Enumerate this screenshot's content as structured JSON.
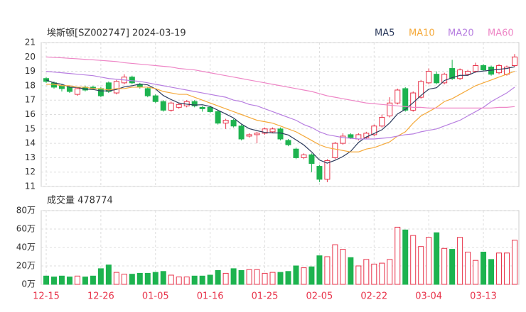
{
  "chart_data": {
    "type": "candlestick",
    "title": "埃斯顿[SZ002747] 2024-03-19",
    "categories": [
      "12-15",
      null,
      null,
      null,
      null,
      null,
      null,
      "12-26",
      null,
      null,
      null,
      null,
      null,
      null,
      "01-05",
      null,
      null,
      null,
      null,
      null,
      null,
      "01-16",
      null,
      null,
      null,
      null,
      null,
      null,
      "01-25",
      null,
      null,
      null,
      null,
      null,
      null,
      "02-05",
      null,
      null,
      null,
      null,
      null,
      null,
      "02-22",
      null,
      null,
      null,
      null,
      null,
      null,
      "03-04",
      null,
      null,
      null,
      null,
      null,
      null,
      "03-13",
      null,
      null,
      null,
      null
    ],
    "open": [
      18.5,
      18.2,
      18.0,
      17.9,
      17.4,
      17.9,
      17.9,
      17.8,
      18.2,
      17.5,
      18.2,
      18.6,
      18.1,
      17.8,
      17.3,
      16.9,
      16.3,
      16.5,
      16.6,
      16.9,
      16.5,
      16.5,
      16.2,
      15.4,
      15.6,
      15.2,
      14.5,
      14.6,
      14.7,
      14.8,
      15.0,
      14.2,
      13.6,
      13.0,
      13.2,
      12.4,
      11.5,
      13.0,
      14.0,
      14.6,
      14.3,
      14.4,
      14.6,
      15.2,
      15.9,
      16.8,
      17.8,
      16.3,
      17.2,
      18.2,
      18.8,
      18.2,
      19.2,
      18.5,
      18.8,
      19.0,
      19.4,
      19.3,
      18.9,
      18.8,
      19.4
    ],
    "high": [
      18.6,
      18.3,
      18.1,
      18.0,
      17.9,
      18.0,
      18.0,
      17.9,
      18.3,
      18.4,
      18.8,
      18.7,
      18.2,
      17.9,
      17.4,
      17.0,
      16.9,
      16.8,
      17.0,
      17.0,
      16.6,
      16.6,
      16.3,
      15.7,
      15.7,
      15.3,
      14.7,
      14.8,
      15.1,
      15.1,
      15.1,
      14.3,
      13.7,
      13.3,
      13.3,
      12.5,
      12.9,
      14.1,
      14.7,
      14.7,
      14.7,
      14.8,
      15.3,
      16.0,
      17.2,
      17.8,
      17.9,
      17.6,
      18.4,
      19.2,
      19.0,
      18.9,
      19.8,
      19.2,
      19.1,
      19.6,
      19.5,
      19.4,
      19.5,
      19.4,
      20.2
    ],
    "low": [
      18.2,
      17.8,
      17.6,
      17.5,
      17.3,
      17.6,
      17.7,
      17.2,
      17.5,
      17.4,
      18.1,
      18.1,
      17.8,
      17.2,
      16.8,
      16.2,
      16.2,
      16.4,
      16.5,
      16.5,
      16.2,
      16.1,
      15.3,
      15.0,
      15.1,
      14.2,
      14.4,
      14.0,
      14.6,
      14.7,
      14.2,
      13.8,
      12.9,
      12.9,
      12.0,
      11.3,
      11.3,
      12.9,
      13.9,
      14.3,
      14.2,
      14.3,
      14.5,
      15.1,
      15.8,
      16.7,
      16.2,
      16.2,
      17.1,
      18.1,
      18.1,
      18.1,
      18.4,
      18.4,
      18.7,
      18.9,
      19.0,
      18.7,
      18.8,
      18.7,
      19.3
    ],
    "close": [
      18.3,
      17.9,
      17.8,
      17.6,
      17.8,
      17.7,
      17.8,
      17.3,
      17.6,
      18.3,
      18.6,
      18.2,
      17.9,
      17.3,
      16.9,
      16.3,
      16.8,
      16.7,
      16.9,
      16.6,
      16.4,
      16.2,
      15.4,
      15.6,
      15.2,
      14.3,
      14.6,
      14.7,
      15.0,
      15.0,
      14.3,
      13.9,
      13.0,
      13.2,
      12.6,
      11.5,
      12.8,
      14.0,
      14.5,
      14.4,
      14.6,
      14.7,
      15.2,
      15.8,
      16.8,
      17.7,
      16.3,
      17.5,
      18.3,
      19.0,
      18.2,
      18.8,
      18.5,
      19.1,
      19.0,
      19.4,
      19.1,
      18.8,
      19.4,
      19.3,
      20.0
    ],
    "up_color": "#e8334a",
    "down_color": "#1db34f",
    "ylim": [
      11,
      21
    ],
    "yticks": [
      11,
      12,
      13,
      14,
      15,
      16,
      17,
      18,
      19,
      20,
      21
    ],
    "grid": true,
    "ma_series": [
      {
        "name": "MA5",
        "color": "#2b3a5c",
        "values": [
          18.4,
          18.2,
          18.1,
          17.9,
          17.88,
          17.76,
          17.74,
          17.64,
          17.64,
          17.74,
          17.92,
          18.0,
          18.12,
          18.06,
          17.78,
          17.32,
          17.04,
          16.8,
          16.72,
          16.66,
          16.68,
          16.56,
          16.3,
          16.04,
          15.76,
          15.34,
          15.02,
          14.88,
          14.76,
          14.72,
          14.72,
          14.58,
          14.24,
          13.88,
          13.4,
          12.84,
          12.62,
          12.82,
          13.08,
          13.44,
          14.06,
          14.44,
          14.68,
          14.94,
          15.42,
          16.04,
          16.36,
          16.82,
          17.32,
          17.76,
          17.86,
          18.36,
          18.56,
          18.72,
          18.72,
          18.96,
          19.02,
          19.08,
          19.14,
          19.2,
          19.32
        ]
      },
      {
        "name": "MA10",
        "color": "#f5a93a",
        "values": [
          18.1,
          18.1,
          18.0,
          18.0,
          17.9,
          17.9,
          17.8,
          17.8,
          17.7,
          17.8,
          17.8,
          17.9,
          17.9,
          17.9,
          17.8,
          17.6,
          17.5,
          17.4,
          17.4,
          17.2,
          17.0,
          16.8,
          16.6,
          16.4,
          16.2,
          16.0,
          15.8,
          15.6,
          15.5,
          15.4,
          15.2,
          15.0,
          14.8,
          14.5,
          14.2,
          13.9,
          13.7,
          13.6,
          13.5,
          13.4,
          13.4,
          13.6,
          13.7,
          13.9,
          14.1,
          14.5,
          14.8,
          15.4,
          15.9,
          16.2,
          16.5,
          16.9,
          17.1,
          17.4,
          17.7,
          18.0,
          18.2,
          18.4,
          18.6,
          18.8,
          19.0
        ]
      },
      {
        "name": "MA20",
        "color": "#b77ee0",
        "values": [
          19.0,
          18.95,
          18.9,
          18.85,
          18.8,
          18.75,
          18.7,
          18.6,
          18.5,
          18.45,
          18.4,
          18.35,
          18.3,
          18.2,
          18.1,
          18.0,
          17.9,
          17.8,
          17.7,
          17.6,
          17.5,
          17.4,
          17.3,
          17.2,
          17.0,
          16.9,
          16.7,
          16.6,
          16.4,
          16.2,
          16.0,
          15.8,
          15.6,
          15.3,
          15.1,
          14.8,
          14.6,
          14.5,
          14.4,
          14.35,
          14.3,
          14.3,
          14.3,
          14.35,
          14.4,
          14.5,
          14.6,
          14.65,
          14.8,
          14.9,
          15.0,
          15.2,
          15.4,
          15.6,
          15.9,
          16.2,
          16.5,
          16.9,
          17.2,
          17.5,
          17.9
        ]
      },
      {
        "name": "MA60",
        "color": "#ee86c6",
        "values": [
          20.0,
          19.97,
          19.94,
          19.9,
          19.87,
          19.83,
          19.8,
          19.76,
          19.72,
          19.68,
          19.6,
          19.55,
          19.5,
          19.45,
          19.4,
          19.35,
          19.3,
          19.2,
          19.15,
          19.1,
          19.0,
          18.9,
          18.8,
          18.7,
          18.6,
          18.5,
          18.4,
          18.3,
          18.2,
          18.1,
          18.0,
          17.9,
          17.8,
          17.7,
          17.6,
          17.45,
          17.3,
          17.2,
          17.1,
          17.0,
          16.9,
          16.8,
          16.75,
          16.7,
          16.65,
          16.6,
          16.55,
          16.5,
          16.5,
          16.45,
          16.45,
          16.45,
          16.45,
          16.45,
          16.45,
          16.45,
          16.45,
          16.45,
          16.5,
          16.5,
          16.55
        ]
      }
    ],
    "volume": {
      "title": "成交量 478774",
      "values": [
        9,
        8,
        9,
        8,
        9,
        8,
        9,
        17,
        21,
        13,
        11,
        11,
        12,
        12,
        13,
        14,
        10,
        8,
        8,
        9,
        9,
        10,
        15,
        12,
        17,
        15,
        16,
        16,
        12,
        13,
        13,
        14,
        20,
        18,
        19,
        31,
        30,
        43,
        38,
        29,
        20,
        27,
        22,
        23,
        27,
        62,
        59,
        53,
        41,
        51,
        56,
        39,
        38,
        51,
        35,
        26,
        35,
        27,
        34,
        34,
        47.8774
      ],
      "ylim": [
        0,
        80
      ],
      "yticks": [
        {
          "value": 0,
          "label": "0万"
        },
        {
          "value": 20,
          "label": "20万"
        },
        {
          "value": 40,
          "label": "40万"
        },
        {
          "value": 60,
          "label": "60万"
        },
        {
          "value": 80,
          "label": "80万"
        }
      ]
    }
  }
}
